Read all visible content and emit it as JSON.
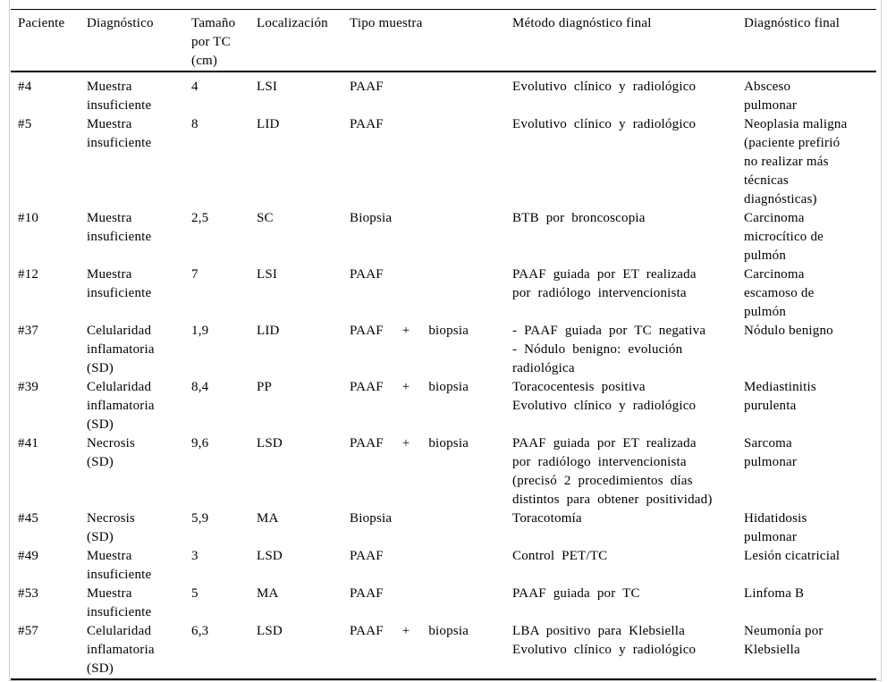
{
  "colors": {
    "background": "#ffffff",
    "text": "#000000",
    "table_rule": "#000000",
    "frame_border": "#d0d0d0"
  },
  "table": {
    "headers": [
      "Paciente",
      "Diagnóstico",
      "Tamaño\npor TC\n(cm)",
      "Localización",
      "Tipo muestra",
      "Método diagnóstico final",
      "Diagnóstico final"
    ],
    "rows": [
      {
        "paciente": "#4",
        "diagnostico": "Muestra\ninsuficiente",
        "tamano_tc": "4",
        "localizacion": "LSI",
        "tipo_muestra": "PAAF",
        "metodo_final": "Evolutivo clínico y radiológico",
        "diagnostico_final": "Absceso\npulmonar"
      },
      {
        "paciente": "#5",
        "diagnostico": "Muestra\ninsuficiente",
        "tamano_tc": "8",
        "localizacion": "LID",
        "tipo_muestra": "PAAF",
        "metodo_final": "Evolutivo clínico y radiológico",
        "diagnostico_final": "Neoplasia maligna\n(paciente prefirió\nno realizar más\ntécnicas\ndiagnósticas)"
      },
      {
        "paciente": "#10",
        "diagnostico": "Muestra\ninsuficiente",
        "tamano_tc": "2,5",
        "localizacion": "SC",
        "tipo_muestra": "Biopsia",
        "metodo_final": "BTB por broncoscopia",
        "diagnostico_final": "Carcinoma\nmicrocítico de\npulmón"
      },
      {
        "paciente": "#12",
        "diagnostico": "Muestra\ninsuficiente",
        "tamano_tc": "7",
        "localizacion": "LSI",
        "tipo_muestra": "PAAF",
        "metodo_final": "PAAF guiada por ET realizada\npor radiólogo intervencionista",
        "diagnostico_final": "Carcinoma\nescamoso de\npulmón"
      },
      {
        "paciente": "#37",
        "diagnostico": "Celularidad\ninflamatoria\n(SD)",
        "tamano_tc": "1,9",
        "localizacion": "LID",
        "tipo_muestra": "PAAF + biopsia",
        "metodo_final": "- PAAF guiada por TC negativa\n- Nódulo benigno: evolución\nradiológica",
        "diagnostico_final": "Nódulo benigno"
      },
      {
        "paciente": "#39",
        "diagnostico": "Celularidad\ninflamatoria\n(SD)",
        "tamano_tc": "8,4",
        "localizacion": "PP",
        "tipo_muestra": "PAAF + biopsia",
        "metodo_final": "Toracocentesis positiva\nEvolutivo clínico y radiológico",
        "diagnostico_final": "Mediastinitis\npurulenta"
      },
      {
        "paciente": "#41",
        "diagnostico": "Necrosis\n(SD)",
        "tamano_tc": "9,6",
        "localizacion": "LSD",
        "tipo_muestra": "PAAF + biopsia",
        "metodo_final": "PAAF guiada por ET realizada\npor radiólogo intervencionista\n(precisó 2 procedimientos días\ndistintos para obtener positividad)",
        "diagnostico_final": "Sarcoma\npulmonar"
      },
      {
        "paciente": "#45",
        "diagnostico": "Necrosis\n(SD)",
        "tamano_tc": "5,9",
        "localizacion": "MA",
        "tipo_muestra": "Biopsia",
        "metodo_final": "Toracotomía",
        "diagnostico_final": "Hidatidosis\npulmonar"
      },
      {
        "paciente": "#49",
        "diagnostico": "Muestra\ninsuficiente",
        "tamano_tc": "3",
        "localizacion": "LSD",
        "tipo_muestra": "PAAF",
        "metodo_final": "Control PET/TC",
        "diagnostico_final": "Lesión cicatricial"
      },
      {
        "paciente": "#53",
        "diagnostico": "Muestra\ninsuficiente",
        "tamano_tc": "5",
        "localizacion": "MA",
        "tipo_muestra": "PAAF",
        "metodo_final": "PAAF guiada por TC",
        "diagnostico_final": "Linfoma B"
      },
      {
        "paciente": "#57",
        "diagnostico": "Celularidad\ninflamatoria\n(SD)",
        "tamano_tc": "6,3",
        "localizacion": "LSD",
        "tipo_muestra": "PAAF + biopsia",
        "metodo_final": "LBA positivo para Klebsiella\nEvolutivo clínico y radiológico",
        "diagnostico_final": "Neumonía por\nKlebsiella"
      }
    ]
  }
}
